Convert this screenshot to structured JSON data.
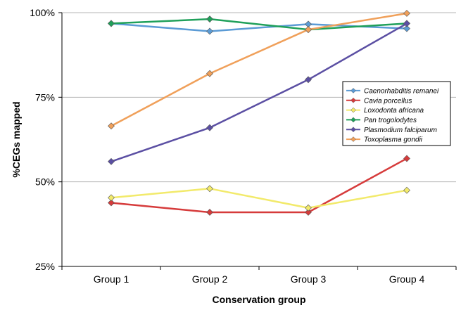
{
  "chart_data": {
    "type": "line",
    "title": "",
    "xlabel": "Conservation group",
    "ylabel": "%CEGs mapped",
    "categories": [
      "Group 1",
      "Group 2",
      "Group 3",
      "Group 4"
    ],
    "ylim": [
      25,
      100
    ],
    "yticks": [
      25,
      50,
      75,
      100
    ],
    "ytick_labels": [
      "25%",
      "50%",
      "75%",
      "100%"
    ],
    "grid": "horizontal",
    "legend_position": "right",
    "series": [
      {
        "name": "Caenorhabditis remanei",
        "color": "#5b9bd5",
        "values": [
          96.8,
          94.5,
          96.6,
          95.3
        ]
      },
      {
        "name": "Cavia porcellus",
        "color": "#d63b3b",
        "values": [
          43.8,
          41.0,
          41.0,
          56.9
        ]
      },
      {
        "name": "Loxodonta africana",
        "color": "#f2ea6b",
        "values": [
          45.3,
          48.0,
          42.3,
          47.5
        ]
      },
      {
        "name": "Pan trogolodytes",
        "color": "#1fa05a",
        "values": [
          96.8,
          98.1,
          95.0,
          96.8
        ]
      },
      {
        "name": "Plasmodium falciparum",
        "color": "#5b4fa3",
        "values": [
          56.0,
          66.0,
          80.2,
          96.8
        ]
      },
      {
        "name": "Toxoplasma gondii",
        "color": "#f0a05a",
        "values": [
          66.5,
          82.0,
          95.0,
          99.8
        ]
      }
    ]
  }
}
